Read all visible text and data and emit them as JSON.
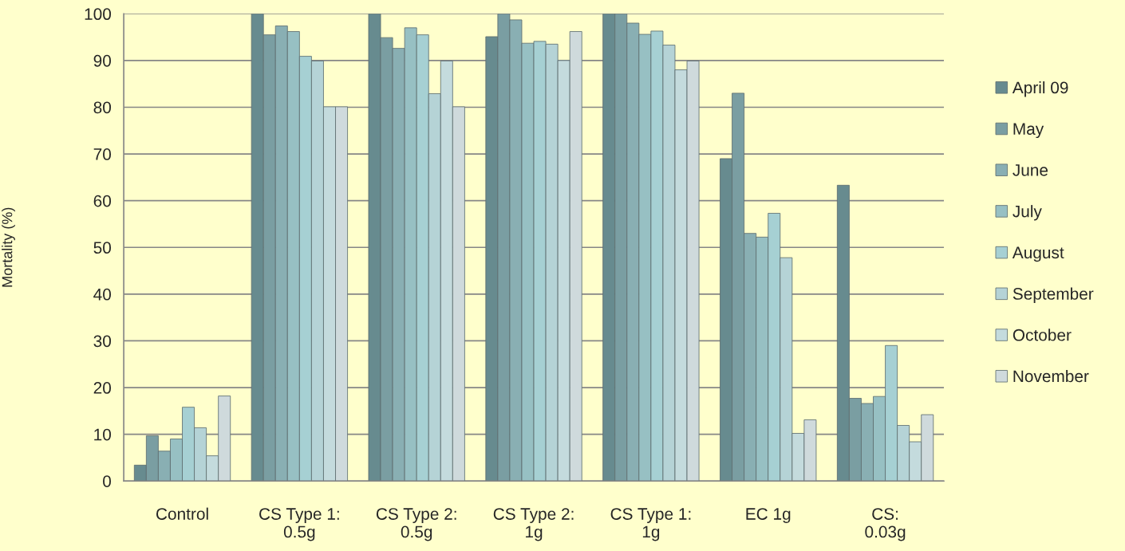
{
  "chart_data": {
    "type": "bar",
    "ylabel": "Mortality (%)",
    "categories": [
      "Control",
      "CS Type 1:\n0.5g",
      "CS Type 2:\n0.5g",
      "CS Type 2:\n1g",
      "CS Type 1:\n1g",
      "EC 1g",
      "CS:\n0.03g"
    ],
    "series": [
      {
        "name": "April 09",
        "color": "#678b8f",
        "values": [
          3.4,
          100,
          100,
          95.1,
          100,
          69.0,
          63.3
        ]
      },
      {
        "name": "May",
        "color": "#7a9ea2",
        "values": [
          9.7,
          95.5,
          94.9,
          100,
          100,
          83.0,
          17.7
        ]
      },
      {
        "name": "June",
        "color": "#89afb3",
        "values": [
          6.4,
          97.4,
          92.6,
          98.7,
          98.0,
          53.0,
          16.6
        ]
      },
      {
        "name": "July",
        "color": "#97c0c3",
        "values": [
          9.0,
          96.2,
          97.0,
          93.7,
          95.6,
          52.2,
          18.1
        ]
      },
      {
        "name": "August",
        "color": "#a6d0d3",
        "values": [
          15.8,
          90.9,
          95.5,
          94.1,
          96.3,
          57.3,
          29.0
        ]
      },
      {
        "name": "September",
        "color": "#b5d3d6",
        "values": [
          11.4,
          89.9,
          82.9,
          93.5,
          93.3,
          47.8,
          11.9
        ]
      },
      {
        "name": "October",
        "color": "#c4dbdd",
        "values": [
          5.4,
          80.1,
          89.9,
          90.0,
          88.0,
          10.2,
          8.4
        ]
      },
      {
        "name": "November",
        "color": "#cfdadc",
        "values": [
          18.2,
          80.1,
          80.1,
          96.2,
          89.9,
          13.1,
          14.2
        ]
      }
    ],
    "ylim": [
      0,
      100
    ],
    "yticks": [
      0,
      10,
      20,
      30,
      40,
      50,
      60,
      70,
      80,
      90,
      100
    ],
    "grid": "y",
    "legend": "right"
  }
}
